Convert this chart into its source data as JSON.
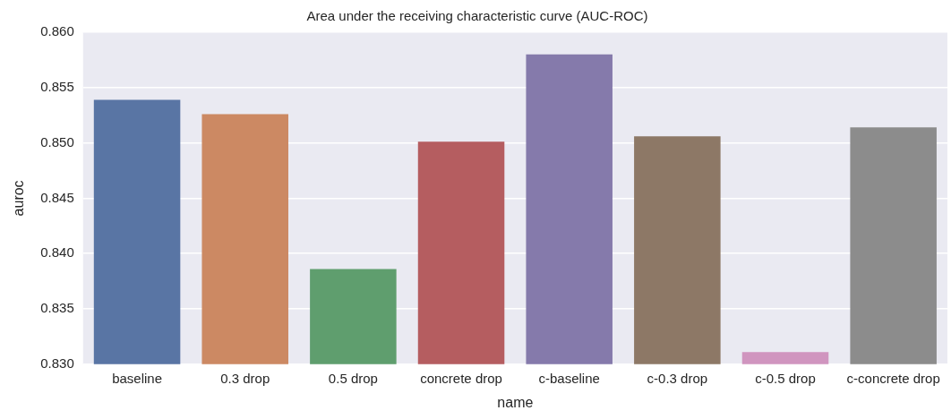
{
  "chart_data": {
    "type": "bar",
    "title": "Area under the receiving characteristic curve (AUC-ROC)",
    "xlabel": "name",
    "ylabel": "auroc",
    "categories": [
      "baseline",
      "0.3 drop",
      "0.5 drop",
      "concrete drop",
      "c-baseline",
      "c-0.3 drop",
      "c-0.5 drop",
      "c-concrete drop"
    ],
    "values": [
      0.8539,
      0.8526,
      0.8386,
      0.8501,
      0.858,
      0.8506,
      0.8311,
      0.8514
    ],
    "colors": [
      "#5975a4",
      "#cc8963",
      "#5f9e6e",
      "#b55d60",
      "#857aab",
      "#8d7866",
      "#d095bf",
      "#8c8c8c"
    ],
    "ylim": [
      0.83,
      0.86
    ],
    "yticks": [
      {
        "value": 0.83,
        "label": "0.830"
      },
      {
        "value": 0.835,
        "label": "0.835"
      },
      {
        "value": 0.84,
        "label": "0.840"
      },
      {
        "value": 0.845,
        "label": "0.845"
      },
      {
        "value": 0.85,
        "label": "0.850"
      },
      {
        "value": 0.855,
        "label": "0.855"
      },
      {
        "value": 0.86,
        "label": "0.860"
      }
    ],
    "grid": "y"
  }
}
